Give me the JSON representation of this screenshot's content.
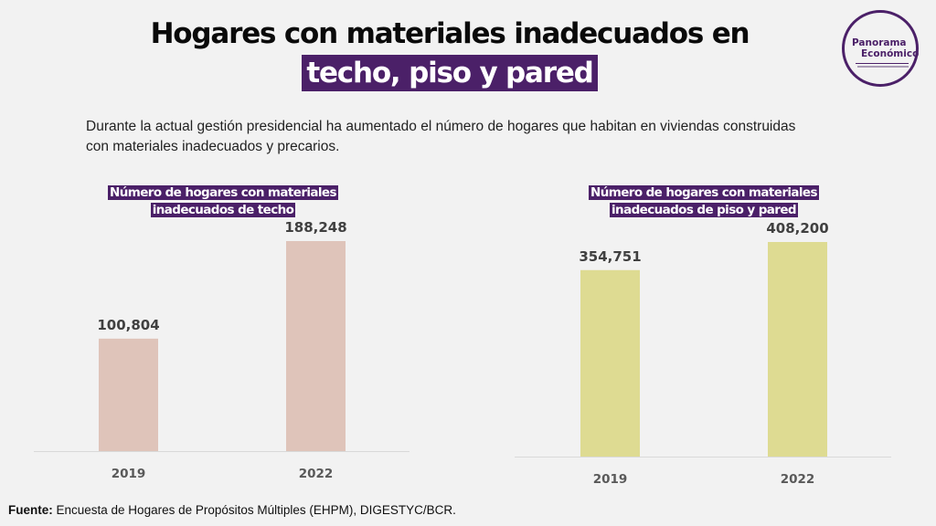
{
  "header": {
    "title_line1": "Hogares con materiales inadecuados en",
    "title_line2": "techo, piso y pared"
  },
  "logo": {
    "line1": "Panorama",
    "line2": "Económico"
  },
  "description": "Durante la actual gestión presidencial ha aumentado el número de hogares que habitan en viviendas construidas con materiales inadecuados y precarios.",
  "footer": {
    "source_label": "Fuente:",
    "source_text": " Encuesta de Hogares de Propósitos Múltiples (EHPM), DIGESTYC/BCR."
  },
  "colors": {
    "accent": "#4b2068",
    "techo_bar": "#dfc4ba",
    "piso_bar": "#dedb92"
  },
  "chart_data": [
    {
      "type": "bar",
      "title": "Número de hogares con materiales inadecuados de techo",
      "categories": [
        "2019",
        "2022"
      ],
      "values": [
        100804,
        188248
      ],
      "value_labels": [
        "100,804",
        "188,248"
      ],
      "xlabel": "",
      "ylabel": "",
      "ylim": [
        0,
        188248
      ],
      "grid": false,
      "legend": "none"
    },
    {
      "type": "bar",
      "title": "Número de hogares con materiales inadecuados de piso y pared",
      "categories": [
        "2019",
        "2022"
      ],
      "values": [
        354751,
        408200
      ],
      "value_labels": [
        "354,751",
        "408,200"
      ],
      "xlabel": "",
      "ylabel": "",
      "ylim": [
        0,
        408200
      ],
      "grid": false,
      "legend": "none"
    }
  ]
}
